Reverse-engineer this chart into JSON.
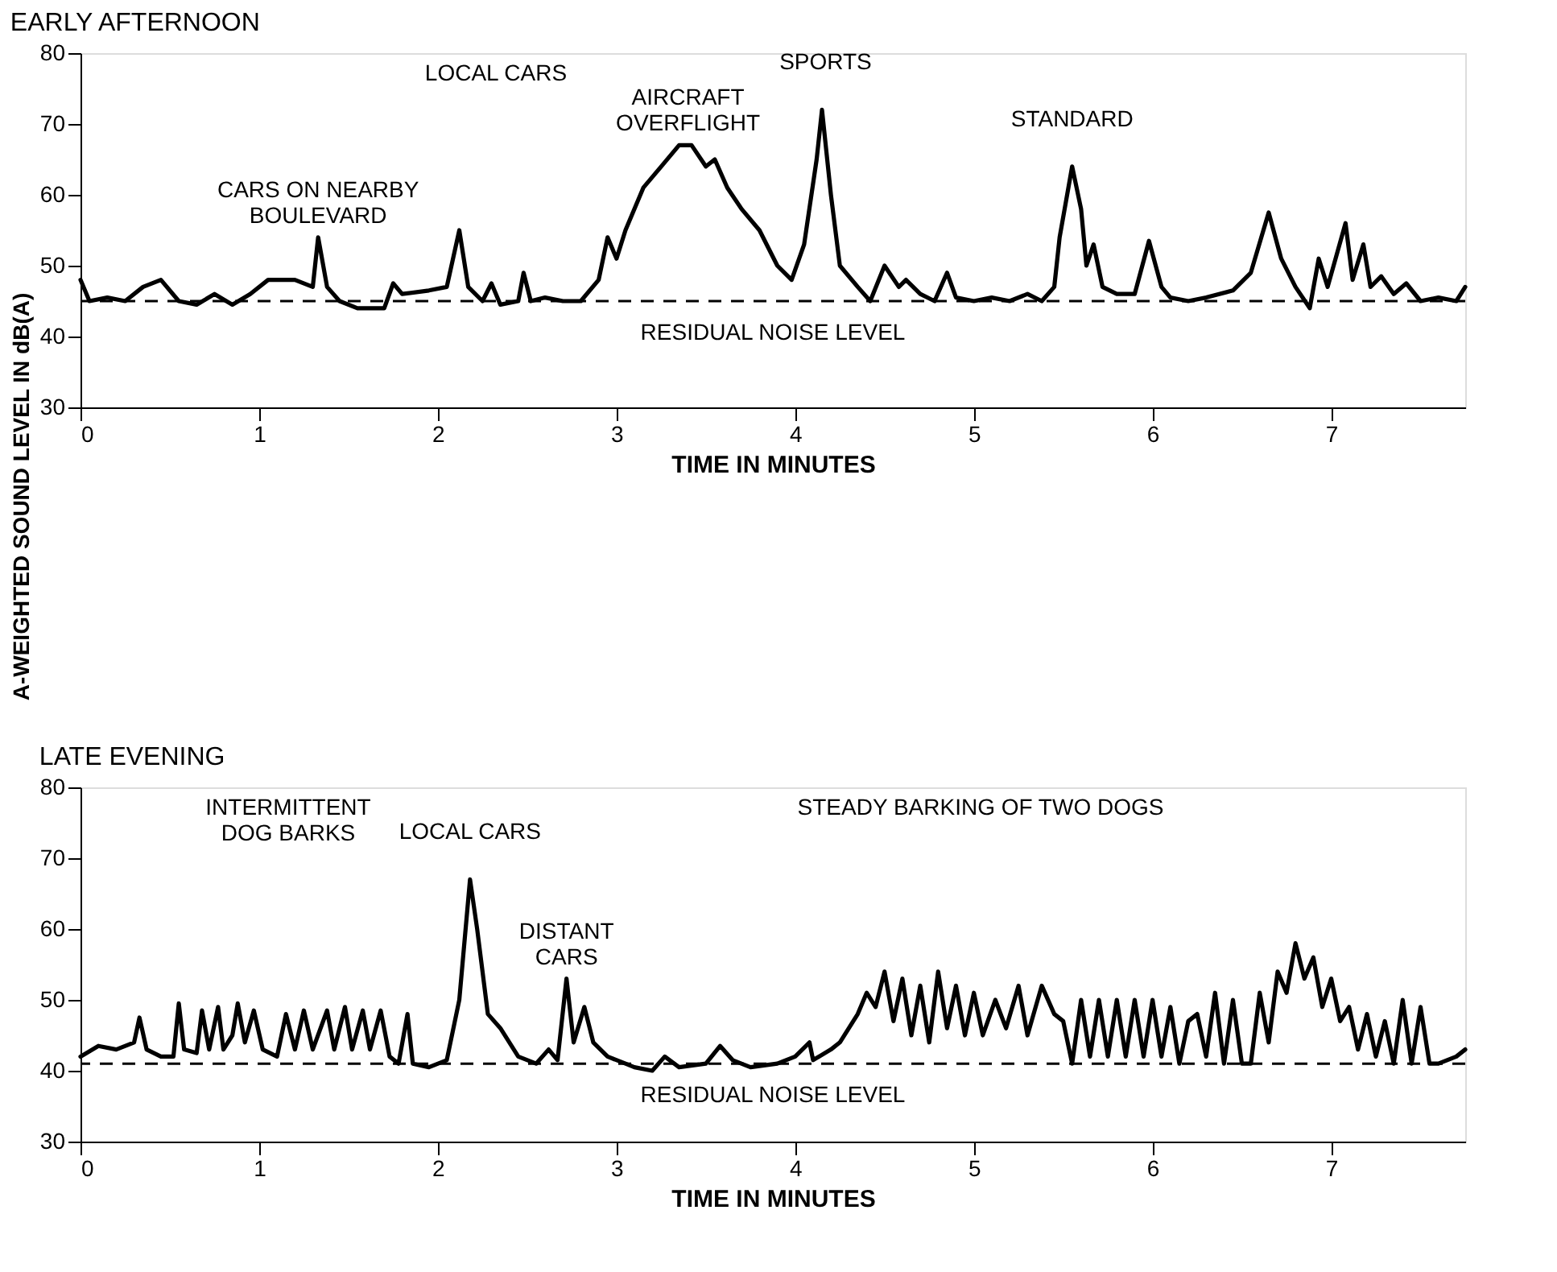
{
  "chart_data": [
    {
      "type": "line",
      "title": "EARLY AFTERNOON",
      "xlabel": "TIME IN MINUTES",
      "ylabel": "A-WEIGHTED SOUND LEVEL IN dB(A)",
      "xlim": [
        0,
        7.75
      ],
      "xticks": [
        0,
        1,
        2,
        3,
        4,
        5,
        6,
        7
      ],
      "ylim": [
        30,
        80
      ],
      "yticks": [
        30,
        40,
        50,
        60,
        70,
        80
      ],
      "grid": false,
      "x": [
        0,
        0.05,
        0.15,
        0.25,
        0.35,
        0.45,
        0.55,
        0.65,
        0.75,
        0.85,
        0.95,
        1.05,
        1.2,
        1.3,
        1.33,
        1.38,
        1.45,
        1.55,
        1.7,
        1.75,
        1.8,
        1.95,
        2.05,
        2.12,
        2.17,
        2.25,
        2.3,
        2.35,
        2.45,
        2.48,
        2.52,
        2.6,
        2.7,
        2.8,
        2.9,
        2.95,
        3.0,
        3.05,
        3.15,
        3.25,
        3.35,
        3.42,
        3.5,
        3.55,
        3.62,
        3.7,
        3.8,
        3.9,
        3.98,
        4.05,
        4.12,
        4.15,
        4.2,
        4.25,
        4.35,
        4.42,
        4.5,
        4.58,
        4.62,
        4.7,
        4.78,
        4.85,
        4.9,
        5.0,
        5.1,
        5.2,
        5.3,
        5.38,
        5.45,
        5.48,
        5.55,
        5.6,
        5.63,
        5.67,
        5.72,
        5.8,
        5.9,
        5.98,
        6.05,
        6.1,
        6.2,
        6.3,
        6.45,
        6.55,
        6.65,
        6.72,
        6.8,
        6.88,
        6.93,
        6.98,
        7.08,
        7.12,
        7.18,
        7.22,
        7.28,
        7.35,
        7.42,
        7.5,
        7.6,
        7.7,
        7.75
      ],
      "series": [
        {
          "color": "#000000",
          "values": [
            48,
            45,
            45.5,
            45,
            47,
            48,
            45,
            44.5,
            46,
            44.5,
            46,
            48,
            48,
            47,
            54,
            47,
            45,
            44,
            44,
            47.5,
            46,
            46.5,
            47,
            55,
            47,
            45,
            47.5,
            44.5,
            45,
            49,
            45,
            45.5,
            45,
            45,
            48,
            54,
            51,
            55,
            61,
            64,
            67,
            67,
            64,
            65,
            61,
            58,
            55,
            50,
            48,
            53,
            65,
            72,
            60,
            50,
            47,
            45,
            50,
            47,
            48,
            46,
            45,
            49,
            45.5,
            45,
            45.5,
            45,
            46,
            45,
            47,
            54,
            64,
            58,
            50,
            53,
            47,
            46,
            46,
            53.5,
            47,
            45.5,
            45,
            45.5,
            46.5,
            49,
            57.5,
            51,
            47,
            44,
            51,
            47,
            56,
            48,
            53,
            47,
            48.5,
            46,
            47.5,
            45,
            45.5,
            45,
            47
          ]
        }
      ],
      "ref_lines": [
        {
          "axis": "y",
          "value": 45,
          "label": "RESIDUAL NOISE LEVEL",
          "line_style": "dashed"
        }
      ],
      "annotations": [
        {
          "text": "CARS ON NEARBY\nBOULEVARD",
          "x": 1.33,
          "y": 54
        },
        {
          "text": "AIRCRAFT\nOVERFLIGHT",
          "x": 3.4,
          "y": 67
        },
        {
          "text": "SPORTS",
          "x": 4.17,
          "y": 72
        },
        "LOCAL CARS",
        {
          "text": "STANDARD",
          "x": 5.55,
          "y": 64
        }
      ]
    },
    {
      "type": "line",
      "title": "LATE EVENING",
      "xlabel": "TIME IN MINUTES",
      "xlim": [
        0,
        7.75
      ],
      "xticks": [
        0,
        1,
        2,
        3,
        4,
        5,
        6,
        7
      ],
      "ylim": [
        30,
        80
      ],
      "yticks": [
        30,
        40,
        50,
        60,
        70,
        80
      ],
      "grid": false,
      "x": [
        0,
        0.1,
        0.2,
        0.3,
        0.33,
        0.37,
        0.45,
        0.52,
        0.55,
        0.58,
        0.65,
        0.68,
        0.72,
        0.77,
        0.8,
        0.85,
        0.88,
        0.92,
        0.97,
        1.02,
        1.1,
        1.15,
        1.2,
        1.25,
        1.3,
        1.38,
        1.42,
        1.48,
        1.52,
        1.58,
        1.62,
        1.68,
        1.73,
        1.78,
        1.83,
        1.86,
        1.95,
        2.05,
        2.12,
        2.18,
        2.22,
        2.28,
        2.35,
        2.45,
        2.55,
        2.62,
        2.67,
        2.72,
        2.76,
        2.82,
        2.87,
        2.95,
        3.05,
        3.1,
        3.2,
        3.27,
        3.35,
        3.5,
        3.58,
        3.65,
        3.75,
        3.9,
        4.0,
        4.08,
        4.1,
        4.2,
        4.25,
        4.35,
        4.4,
        4.45,
        4.5,
        4.55,
        4.6,
        4.65,
        4.7,
        4.75,
        4.8,
        4.85,
        4.9,
        4.95,
        5.0,
        5.05,
        5.12,
        5.18,
        5.25,
        5.3,
        5.38,
        5.45,
        5.5,
        5.55,
        5.6,
        5.65,
        5.7,
        5.75,
        5.8,
        5.85,
        5.9,
        5.95,
        6.0,
        6.05,
        6.1,
        6.15,
        6.2,
        6.25,
        6.3,
        6.35,
        6.4,
        6.45,
        6.5,
        6.55,
        6.6,
        6.65,
        6.7,
        6.75,
        6.8,
        6.85,
        6.9,
        6.95,
        7.0,
        7.05,
        7.1,
        7.15,
        7.2,
        7.25,
        7.3,
        7.35,
        7.4,
        7.45,
        7.5,
        7.55,
        7.6,
        7.7,
        7.75
      ],
      "series": [
        {
          "color": "#000000",
          "values": [
            42,
            43.5,
            43,
            44,
            47.5,
            43,
            42,
            42,
            49.5,
            43,
            42.5,
            48.5,
            43,
            49,
            43,
            45,
            49.5,
            44,
            48.5,
            43,
            42,
            48,
            43,
            48.5,
            43,
            48.5,
            43,
            49,
            43,
            48.5,
            43,
            48.5,
            42,
            41,
            48,
            41,
            40.5,
            41.5,
            50,
            67,
            60,
            48,
            46,
            42,
            41,
            43,
            41.5,
            53,
            44,
            49,
            44,
            42,
            41,
            40.5,
            40,
            42,
            40.5,
            41,
            43.5,
            41.5,
            40.5,
            41,
            42,
            44,
            41.5,
            43,
            44,
            48,
            51,
            49,
            54,
            47,
            53,
            45,
            52,
            44,
            54,
            46,
            52,
            45,
            51,
            45,
            50,
            46,
            52,
            45,
            52,
            48,
            47,
            41,
            50,
            42,
            50,
            42,
            50,
            42,
            50,
            42,
            50,
            42,
            49,
            41,
            47,
            48,
            42,
            51,
            41,
            50,
            41,
            41,
            51,
            44,
            54,
            51,
            58,
            53,
            56,
            49,
            53,
            47,
            49,
            43,
            48,
            42,
            47,
            41,
            50,
            41,
            49,
            41,
            41,
            42,
            43
          ]
        }
      ],
      "ref_lines": [
        {
          "axis": "y",
          "value": 41,
          "label": "RESIDUAL NOISE LEVEL",
          "line_style": "dashed"
        }
      ],
      "annotations": [
        "INTERMITTENT\nDOG BARKS",
        {
          "text": "LOCAL CARS",
          "x": 2.18,
          "y": 67
        },
        {
          "text": "DISTANT\nCARS",
          "x": 2.72,
          "y": 53
        },
        "STEADY BARKING OF TWO DOGS"
      ]
    }
  ]
}
